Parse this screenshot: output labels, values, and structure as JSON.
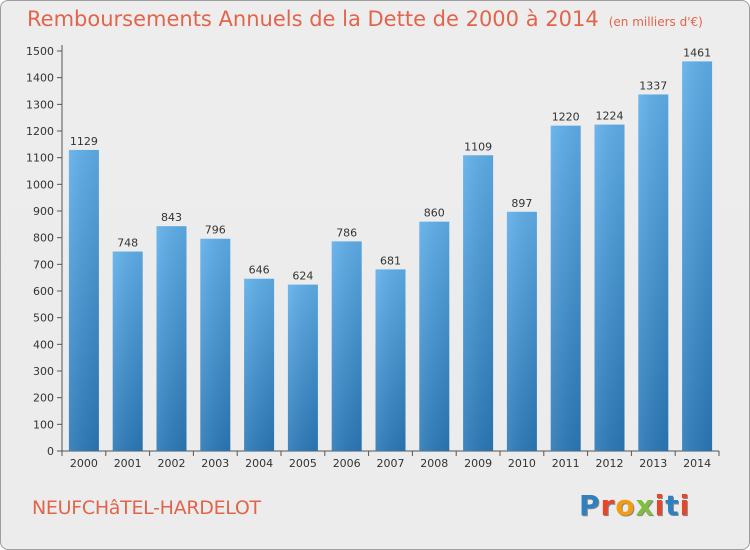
{
  "header": {
    "title": "Remboursements Annuels de la Dette de 2000 à 2014",
    "subtitle": "(en milliers d'€)"
  },
  "footer": {
    "commune": "NEUFCHâTEL-HARDELOT",
    "logo_text": "Proxiti",
    "logo_colors": [
      "#2f7fc1",
      "#e6462a",
      "#f39c12",
      "#7fbf3f",
      "#e6462a",
      "#2f7fc1",
      "#e6462a"
    ]
  },
  "colors": {
    "bar_light": "#5dade8",
    "bar_dark": "#2a7ab9",
    "text": "#333333",
    "accent": "#e2654b",
    "grid": "#cfcfcf"
  },
  "chart_data": {
    "type": "bar",
    "categories": [
      "2000",
      "2001",
      "2002",
      "2003",
      "2004",
      "2005",
      "2006",
      "2007",
      "2008",
      "2009",
      "2010",
      "2011",
      "2012",
      "2013",
      "2014"
    ],
    "values": [
      1129,
      748,
      843,
      796,
      646,
      624,
      786,
      681,
      860,
      1109,
      897,
      1220,
      1224,
      1337,
      1461
    ],
    "title": "Remboursements Annuels de la Dette de 2000 à 2014",
    "ylim": [
      0,
      1500
    ],
    "yticks": [
      0,
      100,
      200,
      300,
      400,
      500,
      600,
      700,
      800,
      900,
      1000,
      1100,
      1200,
      1300,
      1400,
      1500
    ],
    "grid": false
  }
}
